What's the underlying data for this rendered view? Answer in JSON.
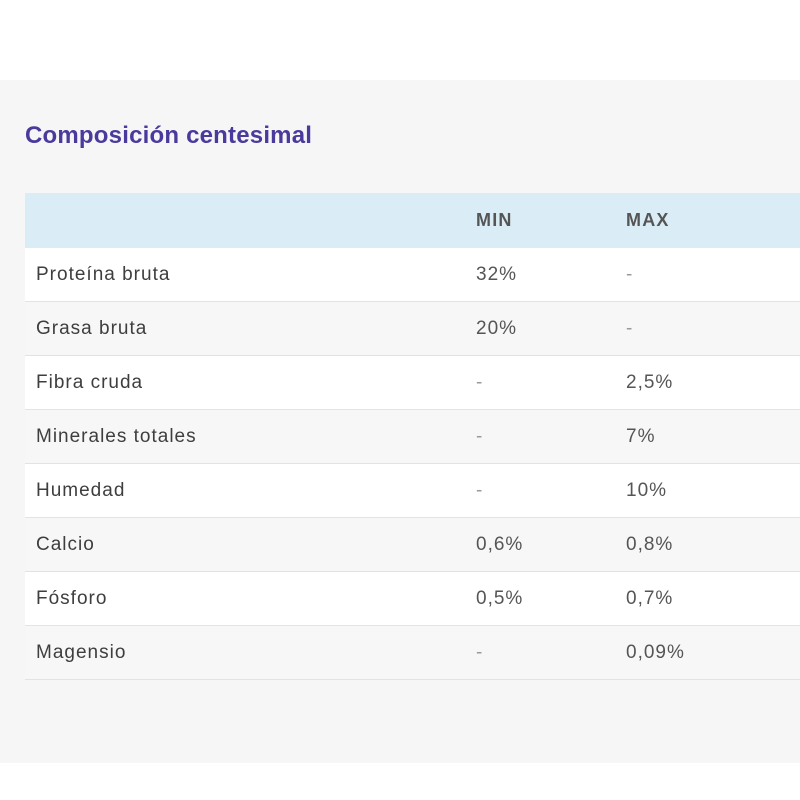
{
  "title": "Composición centesimal",
  "table": {
    "headers": [
      "",
      "MIN",
      "MAX"
    ],
    "rows": [
      {
        "name": "Proteína bruta",
        "min": "32%",
        "max": "-"
      },
      {
        "name": "Grasa bruta",
        "min": "20%",
        "max": "-"
      },
      {
        "name": "Fibra cruda",
        "min": "-",
        "max": "2,5%"
      },
      {
        "name": "Minerales totales",
        "min": "-",
        "max": "7%"
      },
      {
        "name": "Humedad",
        "min": "-",
        "max": "10%"
      },
      {
        "name": "Calcio",
        "min": "0,6%",
        "max": "0,8%"
      },
      {
        "name": "Fósforo",
        "min": "0,5%",
        "max": "0,7%"
      },
      {
        "name": "Magensio",
        "min": "-",
        "max": "0,09%"
      }
    ]
  },
  "colors": {
    "title": "#4a3a9c",
    "header_bg": "#daedf6",
    "panel_bg": "#f6f6f6"
  }
}
